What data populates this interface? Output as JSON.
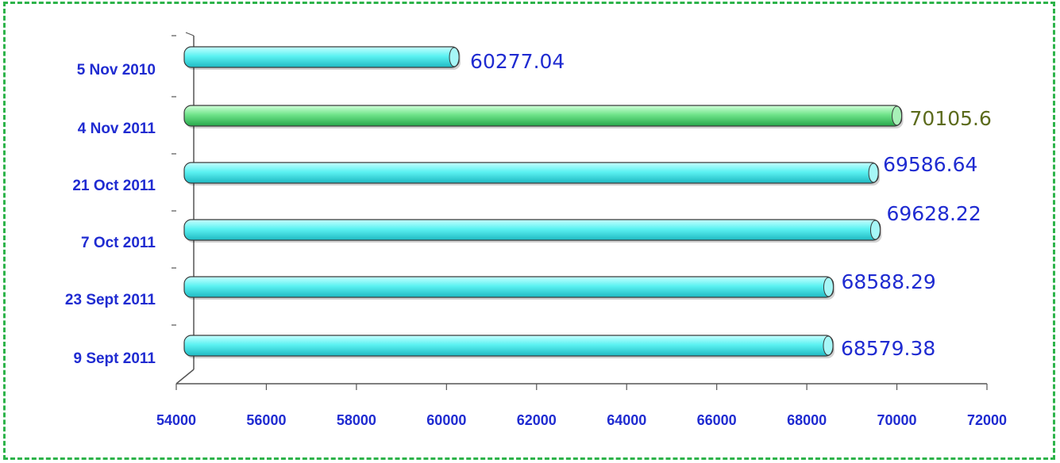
{
  "chart_data": {
    "type": "bar",
    "orientation": "horizontal",
    "title": "",
    "xlabel": "",
    "ylabel": "",
    "categories": [
      "5 Nov 2010",
      "4 Nov 2011",
      "21 Oct 2011",
      "7 Oct 2011",
      "23 Sept 2011",
      "9 Sept 2011"
    ],
    "values": [
      60277.04,
      70105.6,
      69586.64,
      69628.22,
      68588.29,
      68579.38
    ],
    "value_labels": [
      "60277.04",
      "70105.6",
      "69586.64",
      "69628.22",
      "68588.29",
      "68579.38"
    ],
    "highlight_index": 1,
    "xlim": [
      54000,
      72000
    ],
    "xticks": [
      "54000",
      "56000",
      "58000",
      "60000",
      "62000",
      "64000",
      "66000",
      "68000",
      "70000",
      "72000"
    ],
    "grid": false,
    "legend": "none"
  },
  "colors": {
    "bar": "#5cf2f2",
    "bar_dark": "#1fb9c2",
    "highlight_bar": "#6fe48a",
    "highlight_bar_dark": "#28a84b",
    "label_text": "#1f2bd1",
    "highlight_label_text": "#5c6b1c",
    "frame_border": "#2db34a",
    "axis": "#555555"
  }
}
